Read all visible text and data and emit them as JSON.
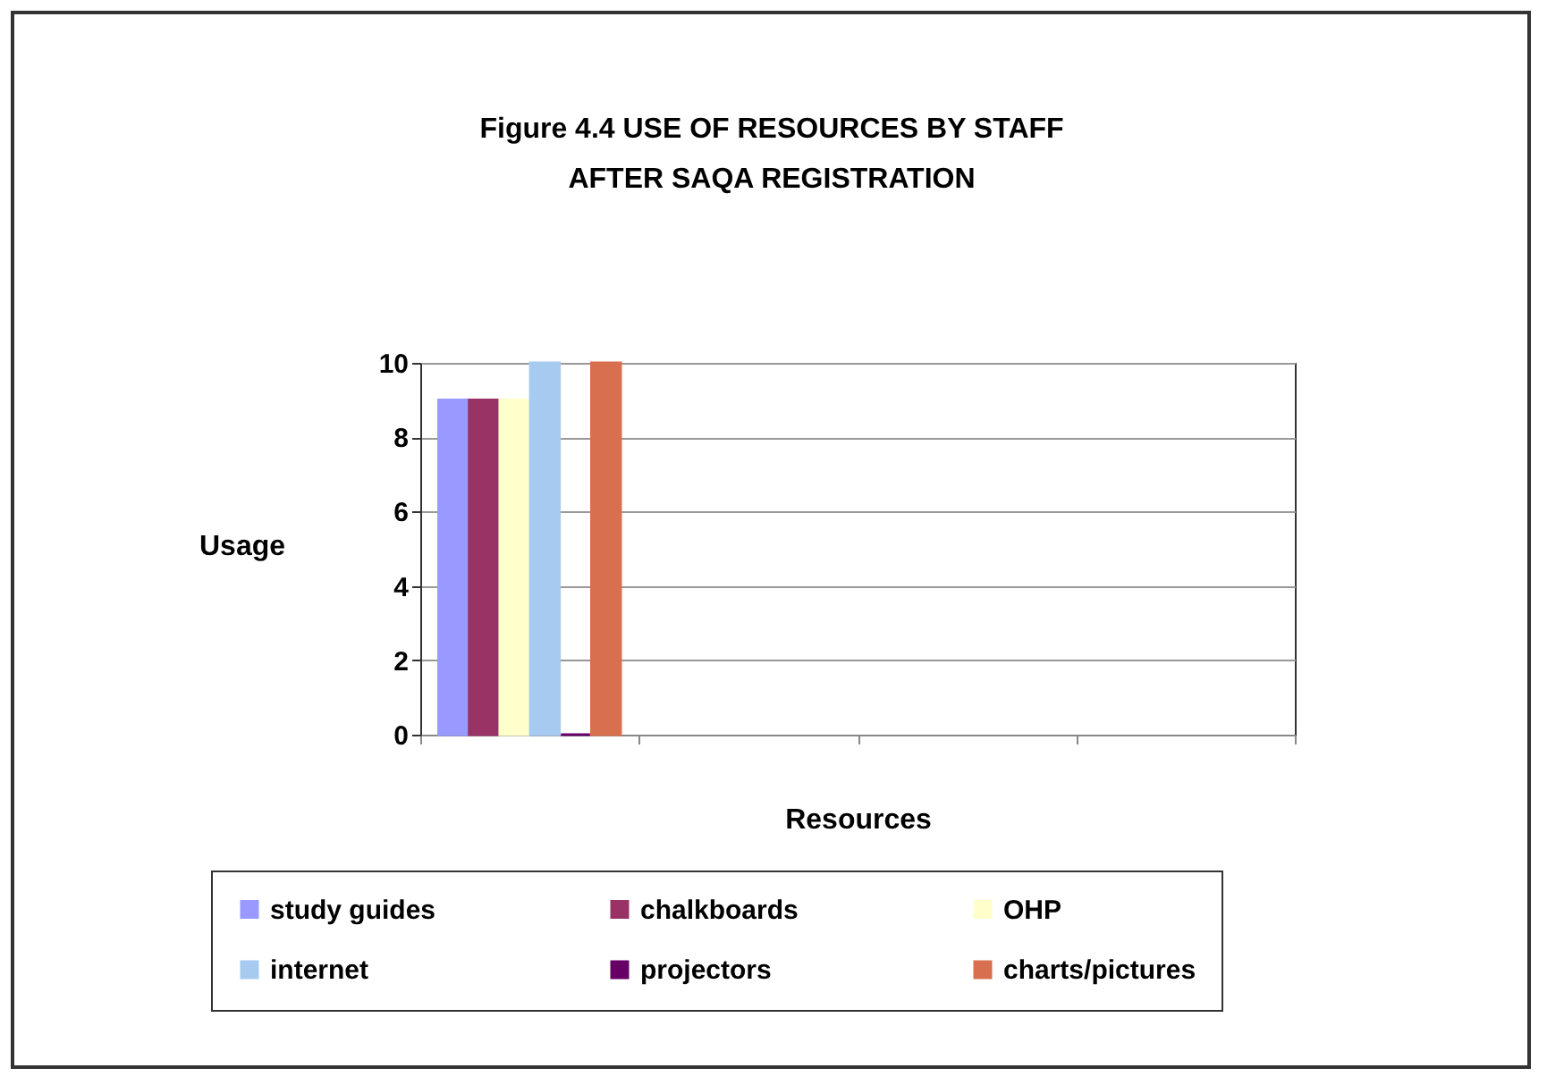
{
  "chart_data": {
    "type": "bar",
    "title": "Figure 4.4  USE OF RESOURCES BY STAFF",
    "subtitle": "AFTER SAQA REGISTRATION",
    "xlabel": "Resources",
    "ylabel": "Usage",
    "categories": [
      null,
      null,
      null,
      null
    ],
    "series": [
      {
        "name": "study guides",
        "color": "#9999ff",
        "values": [
          9,
          null,
          null,
          null
        ]
      },
      {
        "name": "chalkboards",
        "color": "#993366",
        "values": [
          9,
          null,
          null,
          null
        ]
      },
      {
        "name": "OHP",
        "color": "#ffffcc",
        "values": [
          9,
          null,
          null,
          null
        ]
      },
      {
        "name": "internet",
        "color": "#a6caf0",
        "values": [
          10,
          null,
          null,
          null
        ]
      },
      {
        "name": "projectors",
        "color": "#660066",
        "values": [
          0,
          null,
          null,
          null
        ]
      },
      {
        "name": "charts/pictures",
        "color": "#d8704f",
        "values": [
          10,
          null,
          null,
          null
        ]
      }
    ],
    "ylim": [
      0,
      10
    ],
    "yticks": [
      0,
      2,
      4,
      6,
      8,
      10
    ],
    "grid": "y",
    "legend": "bottom"
  }
}
